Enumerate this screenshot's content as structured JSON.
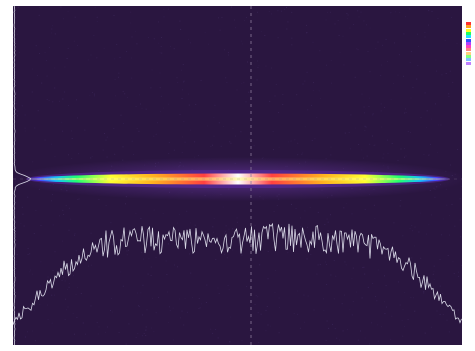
{
  "viewer": {
    "palette": {
      "background": "#2a1640",
      "noise": "#3b2658",
      "profile": "#d8d8e6",
      "crosshair": "#8c7a9a",
      "beam_stops": [
        "#3a1a70",
        "#4a3cff",
        "#18c0ff",
        "#20ff70",
        "#ffff30",
        "#ffb020",
        "#ff4040",
        "#ffffff"
      ]
    },
    "beam": {
      "shape": "elongated horizontal line",
      "horizontal_profile_shape": "flat-top plateau with noisy edges",
      "vertical_profile_shape": "narrow single peak"
    },
    "color_scale_chips": [
      "#ff3030",
      "#ffa020",
      "#ffff20",
      "#20ff60",
      "#20e0ff",
      "#3050ff",
      "#b040ff",
      "#ff40c0",
      "#ff8080",
      "#ffd080",
      "#80ff80",
      "#80c0ff",
      "#c080ff",
      "#ffffff"
    ]
  }
}
